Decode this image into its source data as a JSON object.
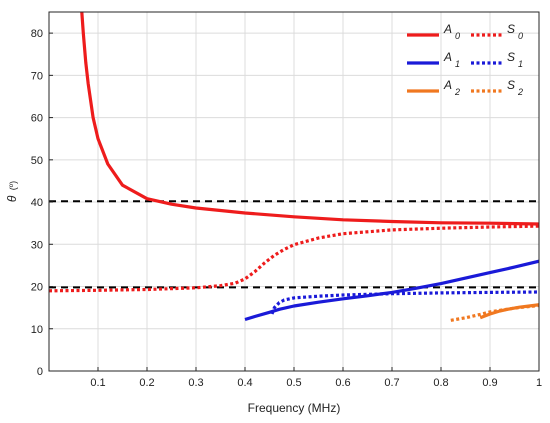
{
  "chart_data": {
    "type": "line",
    "xlabel": "Frequency (MHz)",
    "ylabel_symbol": "θ",
    "ylabel_unit": "(º)",
    "xlim": [
      0,
      1
    ],
    "ylim": [
      0,
      85
    ],
    "xticks": [
      0.1,
      0.2,
      0.3,
      0.4,
      0.5,
      0.6,
      0.7,
      0.8,
      0.9,
      1.0
    ],
    "xtick_labels": [
      "0.1",
      "0.2",
      "0.3",
      "0.4",
      "0.5",
      "0.6",
      "0.7",
      "0.8",
      "0.9",
      "1"
    ],
    "yticks": [
      0,
      10,
      20,
      30,
      40,
      50,
      60,
      70,
      80
    ],
    "ytick_labels": [
      "0",
      "10",
      "20",
      "30",
      "40",
      "50",
      "60",
      "70",
      "80"
    ],
    "grid": true,
    "legend_position": "top-right",
    "reference_lines": [
      {
        "y": 40.2,
        "style": "dashed",
        "color": "#000000"
      },
      {
        "y": 19.8,
        "style": "dashed",
        "color": "#000000"
      }
    ],
    "series": [
      {
        "name": "A",
        "subscript": "0",
        "color": "#ee1c1c",
        "style": "solid",
        "x": [
          0.067,
          0.07,
          0.075,
          0.08,
          0.09,
          0.1,
          0.12,
          0.15,
          0.2,
          0.25,
          0.3,
          0.35,
          0.4,
          0.5,
          0.6,
          0.7,
          0.8,
          0.9,
          1.0
        ],
        "y": [
          85,
          80,
          73,
          68,
          60,
          55,
          49,
          44,
          40.8,
          39.5,
          38.6,
          38.0,
          37.4,
          36.5,
          35.8,
          35.4,
          35.1,
          35.0,
          34.8
        ]
      },
      {
        "name": "S",
        "subscript": "0",
        "color": "#ee1c1c",
        "style": "dotted",
        "x": [
          0.0,
          0.1,
          0.2,
          0.3,
          0.35,
          0.38,
          0.4,
          0.42,
          0.44,
          0.46,
          0.48,
          0.5,
          0.55,
          0.6,
          0.7,
          0.8,
          0.9,
          1.0
        ],
        "y": [
          19.0,
          19.1,
          19.3,
          19.7,
          20.2,
          20.8,
          21.8,
          23.5,
          25.6,
          27.4,
          28.8,
          29.9,
          31.5,
          32.5,
          33.4,
          33.8,
          34.1,
          34.3
        ]
      },
      {
        "name": "A",
        "subscript": "1",
        "color": "#1a1ad8",
        "style": "solid",
        "x": [
          0.4,
          0.42,
          0.45,
          0.47,
          0.5,
          0.55,
          0.6,
          0.65,
          0.7,
          0.75,
          0.8,
          0.85,
          0.9,
          0.95,
          1.0
        ],
        "y": [
          12.2,
          12.9,
          13.9,
          14.6,
          15.4,
          16.3,
          17.1,
          17.8,
          18.6,
          19.6,
          20.7,
          22.0,
          23.3,
          24.6,
          26.0
        ]
      },
      {
        "name": "S",
        "subscript": "1",
        "color": "#1a1ad8",
        "style": "dotted",
        "x": [
          0.455,
          0.46,
          0.47,
          0.48,
          0.5,
          0.55,
          0.6,
          0.7,
          0.8,
          0.9,
          1.0
        ],
        "y": [
          13.5,
          15.0,
          16.2,
          16.8,
          17.3,
          17.7,
          18.0,
          18.3,
          18.5,
          18.6,
          18.7
        ]
      },
      {
        "name": "A",
        "subscript": "2",
        "color": "#f07820",
        "style": "solid",
        "x": [
          0.88,
          0.9,
          0.92,
          0.94,
          0.96,
          0.98,
          1.0
        ],
        "y": [
          12.6,
          13.5,
          14.2,
          14.7,
          15.1,
          15.4,
          15.7
        ]
      },
      {
        "name": "S",
        "subscript": "2",
        "color": "#f07820",
        "style": "dotted",
        "x": [
          0.82,
          0.85,
          0.88,
          0.9,
          0.95,
          1.0
        ],
        "y": [
          12.0,
          12.6,
          13.4,
          14.0,
          14.9,
          15.5
        ]
      }
    ]
  }
}
